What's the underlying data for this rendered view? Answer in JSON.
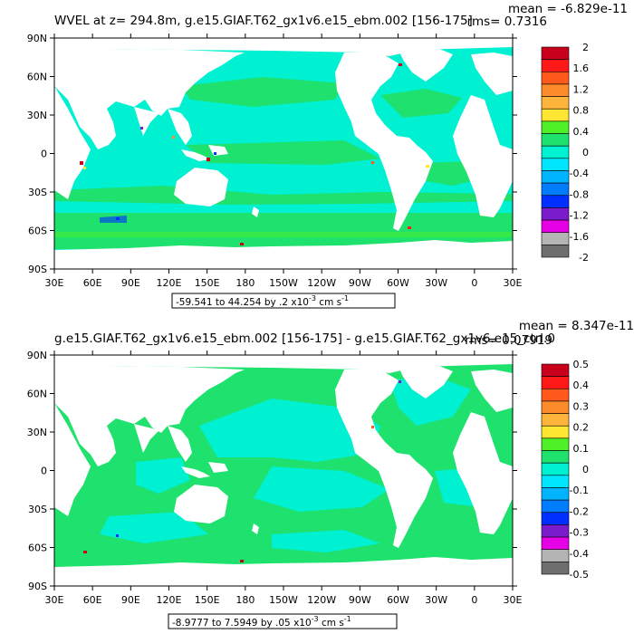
{
  "chart_data": [
    {
      "type": "heatmap",
      "title": "WVEL at z= 294.8m, g.e15.GIAF.T62_gx1v6.e15_ebm.002 [156-175]",
      "stats": {
        "mean": "mean = -6.829e-11",
        "rms": "rms= 0.7316"
      },
      "range_note": {
        "text": "-59.541 to 44.254 by .2 x10",
        "exp": "-3",
        "unit": " cm s",
        "unit_exp": "-1"
      },
      "x_ticks": [
        "30E",
        "60E",
        "90E",
        "120E",
        "150E",
        "180",
        "150W",
        "120W",
        "90W",
        "60W",
        "30W",
        "0",
        "30E"
      ],
      "y_ticks": [
        "90N",
        "60N",
        "30N",
        "0",
        "30S",
        "60S",
        "90S"
      ],
      "colorbar": {
        "labels": [
          "2",
          "1.6",
          "1.2",
          "0.8",
          "0.4",
          "0",
          "-0.4",
          "-0.8",
          "-1.2",
          "-1.6",
          "-2"
        ],
        "colors": [
          "#c8001c",
          "#ff1818",
          "#ff5a1c",
          "#ff8c2a",
          "#ffb43c",
          "#ffe632",
          "#50f028",
          "#1ee16e",
          "#00f0d2",
          "#00e6ff",
          "#00b4ff",
          "#007cff",
          "#0030ff",
          "#7a1ccc",
          "#e600e6",
          "#b4b4b4",
          "#6e6e6e"
        ]
      },
      "field": {
        "dominant": "#00f0d2",
        "secondary": "#1ee16e"
      }
    },
    {
      "type": "heatmap",
      "title": "g.e15.GIAF.T62_gx1v6.e15_ebm.002 [156-175] - g.e15.GIAF.T62_gx1v6.e15_ctrl.0",
      "stats": {
        "mean": "mean = 8.347e-11",
        "rms": "rms= 0.07919"
      },
      "range_note": {
        "text": "-8.9777 to 7.5949 by .05 x10",
        "exp": "-3",
        "unit": " cm s",
        "unit_exp": "-1"
      },
      "x_ticks": [
        "30E",
        "60E",
        "90E",
        "120E",
        "150E",
        "180",
        "150W",
        "120W",
        "90W",
        "60W",
        "30W",
        "0",
        "30E"
      ],
      "y_ticks": [
        "90N",
        "60N",
        "30N",
        "0",
        "30S",
        "60S",
        "90S"
      ],
      "colorbar": {
        "labels": [
          "0.5",
          "0.4",
          "0.3",
          "0.2",
          "0.1",
          "0",
          "-0.1",
          "-0.2",
          "-0.3",
          "-0.4",
          "-0.5"
        ],
        "colors": [
          "#c8001c",
          "#ff1818",
          "#ff5a1c",
          "#ff8c2a",
          "#ffb43c",
          "#ffe632",
          "#50f028",
          "#1ee16e",
          "#00f0d2",
          "#00e6ff",
          "#00b4ff",
          "#007cff",
          "#0030ff",
          "#7a1ccc",
          "#e600e6",
          "#b4b4b4",
          "#6e6e6e"
        ]
      },
      "field": {
        "dominant": "#1ee16e",
        "secondary": "#00f0d2"
      }
    }
  ]
}
